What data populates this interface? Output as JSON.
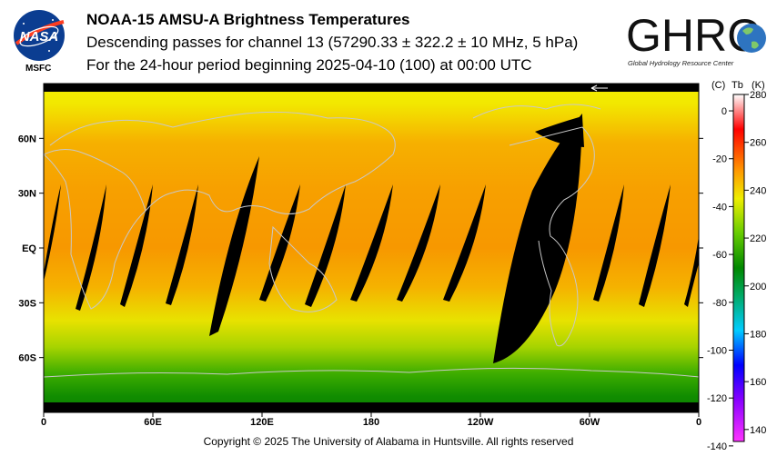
{
  "header": {
    "title": "NOAA-15 AMSU-A Brightness Temperatures",
    "subtitle1": "Descending passes for channel 13 (57290.33 ± 322.2 ± 10 MHz, 5 hPa)",
    "subtitle2": "For the 24-hour period beginning 2025-04-10 (100) at 00:00 UTC"
  },
  "logos": {
    "nasa_text": "NASA",
    "msfc_label": "MSFC",
    "ghrc_text": "GHRC",
    "ghrc_sub": "Global Hydrology Resource Center"
  },
  "map": {
    "lat_labels": [
      "60N",
      "30N",
      "EQ",
      "30S",
      "60S"
    ],
    "lon_labels": [
      "0",
      "60E",
      "120E",
      "180",
      "120W",
      "60W",
      "0"
    ]
  },
  "colorbar": {
    "unit_c": "(C)",
    "unit_tb": "Tb",
    "unit_k": "(K)",
    "c_ticks": [
      "0",
      "-20",
      "-40",
      "-60",
      "-80",
      "-100",
      "-120",
      "-140"
    ],
    "k_ticks": [
      "280",
      "260",
      "240",
      "220",
      "200",
      "180",
      "160",
      "140"
    ],
    "colors": [
      "#ff00ff",
      "#0000ff",
      "#00e0ff",
      "#008800",
      "#22bb22",
      "#e8e800",
      "#ff9900",
      "#ff0000",
      "#ffffff"
    ]
  },
  "footer": {
    "copyright": "Copyright © 2025 The University of Alabama in Huntsville.  All rights reserved"
  }
}
